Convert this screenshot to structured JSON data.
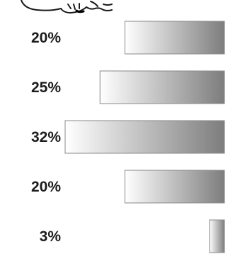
{
  "chart_data": {
    "type": "bar",
    "orientation": "horizontal",
    "bar_alignment": "right",
    "categories": [
      "",
      "",
      "",
      "",
      ""
    ],
    "values": [
      20,
      25,
      32,
      20,
      3
    ],
    "data_labels": [
      "20%",
      "25%",
      "32%",
      "20%",
      "3%"
    ],
    "unit": "%",
    "title": "",
    "xlabel": "",
    "ylabel": "",
    "xlim": [
      0,
      32
    ],
    "grid": false,
    "legend": "none",
    "bar_gradient": [
      "#ffffff",
      "#7d7d7d"
    ],
    "bar_outline_color": "#8a8a8a",
    "label_color": "#1c1c1c"
  },
  "decoration": {
    "icon": "hand-drawn-cartoon-illustration-icon"
  }
}
